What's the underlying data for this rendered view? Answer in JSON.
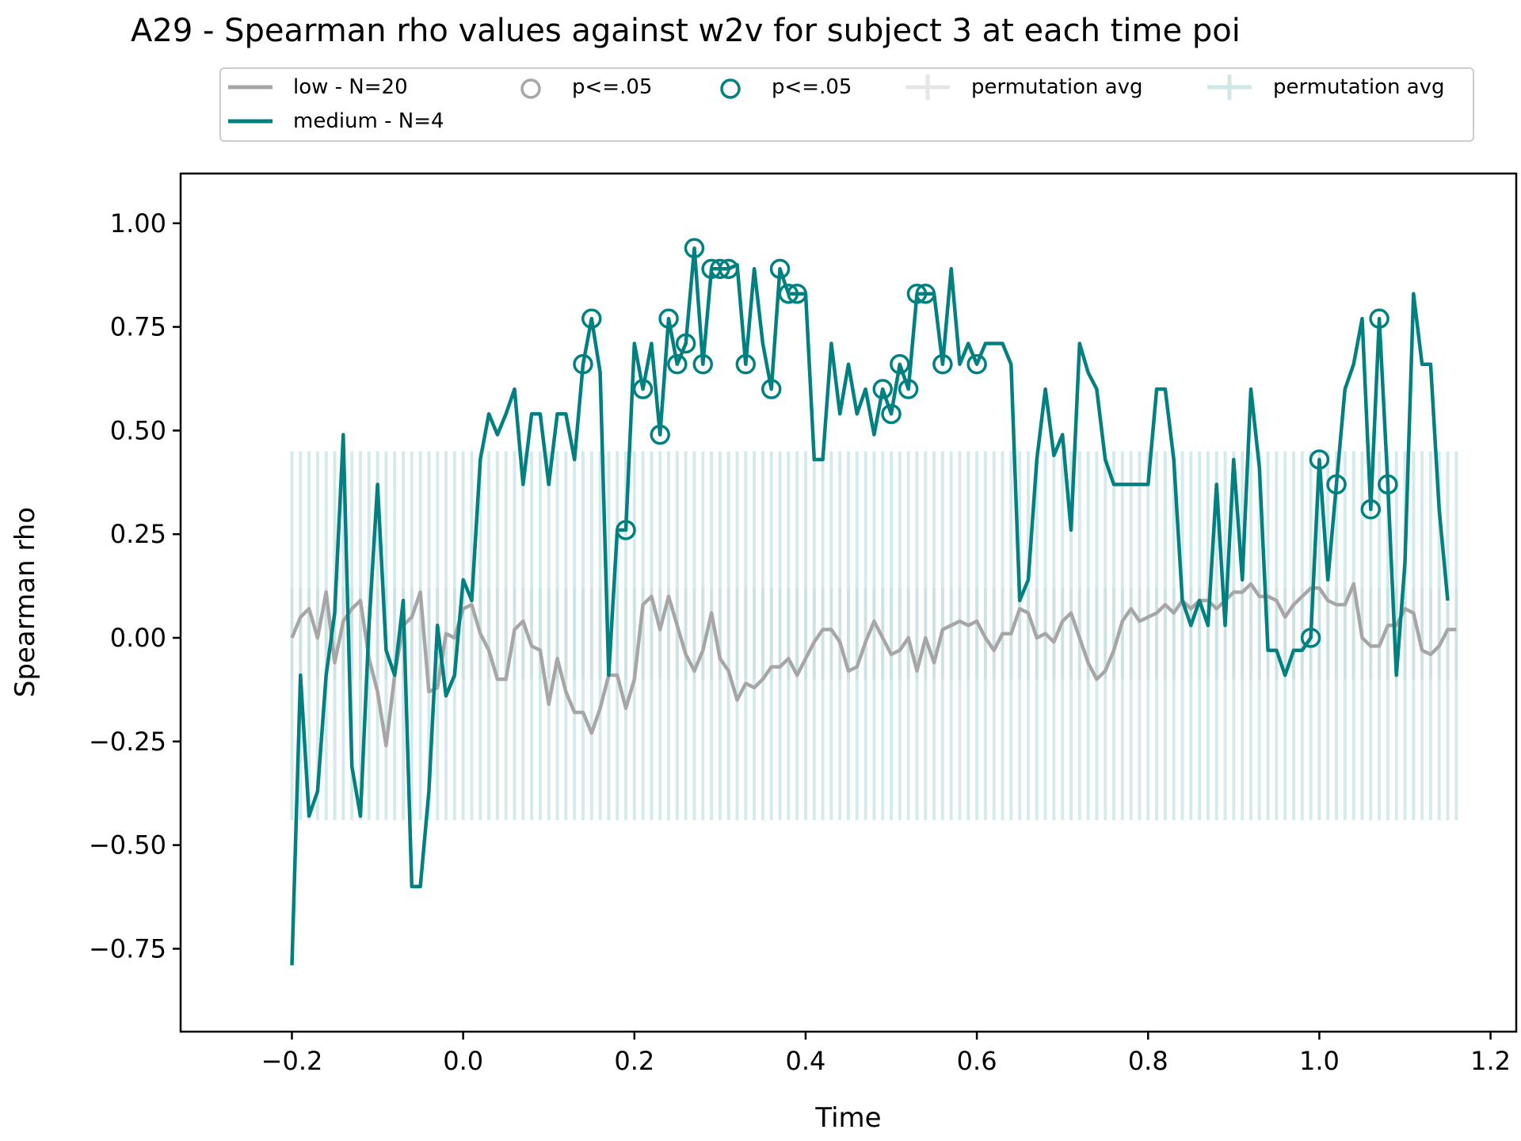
{
  "chart_data": {
    "type": "line",
    "title": "A29 - Spearman rho values against w2v for subject 3 at each time poi",
    "xlabel": "Time",
    "ylabel": "Spearman rho",
    "xlim": [
      -0.33,
      1.23
    ],
    "ylim": [
      -0.95,
      1.12
    ],
    "xticks": [
      -0.2,
      0.0,
      0.2,
      0.4,
      0.6,
      0.8,
      1.0,
      1.2
    ],
    "xtick_labels": [
      "−0.2",
      "0.0",
      "0.2",
      "0.4",
      "0.6",
      "0.8",
      "1.0",
      "1.2"
    ],
    "yticks": [
      -0.75,
      -0.5,
      -0.25,
      0.0,
      0.25,
      0.5,
      0.75,
      1.0
    ],
    "ytick_labels": [
      "−0.75",
      "−0.50",
      "−0.25",
      "0.00",
      "0.25",
      "0.50",
      "0.75",
      "1.00"
    ],
    "grid": false,
    "legend_placement": "top-center",
    "legend": [
      {
        "label": "low - N=20",
        "kind": "line",
        "color": "#a6a6a6"
      },
      {
        "label": "medium - N=4",
        "kind": "line",
        "color": "#008080"
      },
      {
        "label": "p<=.05",
        "kind": "marker",
        "color": "#a6a6a6"
      },
      {
        "label": "p<=.05",
        "kind": "marker",
        "color": "#008080"
      },
      {
        "label": "permutation avg",
        "kind": "errorbar",
        "color": "#d6d6d6"
      },
      {
        "label": "permutation avg",
        "kind": "errorbar",
        "color": "#b2dada"
      }
    ],
    "x_start": -0.2,
    "x_step": 0.01,
    "series": [
      {
        "name": "low - N=20",
        "color": "#a6a6a6",
        "values": [
          0.0,
          0.05,
          0.07,
          0.0,
          0.11,
          -0.06,
          0.04,
          0.07,
          0.09,
          -0.05,
          -0.13,
          -0.26,
          -0.09,
          0.03,
          0.05,
          0.11,
          -0.13,
          -0.12,
          0.01,
          0.0,
          0.07,
          0.08,
          0.01,
          -0.03,
          -0.1,
          -0.1,
          0.02,
          0.04,
          -0.02,
          -0.03,
          -0.16,
          -0.05,
          -0.13,
          -0.18,
          -0.18,
          -0.23,
          -0.17,
          -0.09,
          -0.09,
          -0.17,
          -0.1,
          0.08,
          0.1,
          0.02,
          0.1,
          0.03,
          -0.04,
          -0.08,
          -0.03,
          0.06,
          -0.05,
          -0.08,
          -0.15,
          -0.11,
          -0.12,
          -0.1,
          -0.07,
          -0.07,
          -0.05,
          -0.09,
          -0.05,
          -0.01,
          0.02,
          0.02,
          -0.01,
          -0.08,
          -0.07,
          -0.01,
          0.04,
          0.0,
          -0.04,
          -0.03,
          0.0,
          -0.08,
          0.0,
          -0.06,
          0.02,
          0.03,
          0.04,
          0.03,
          0.04,
          0.0,
          -0.03,
          0.01,
          0.01,
          0.07,
          0.06,
          0.0,
          0.01,
          -0.01,
          0.04,
          0.06,
          0.0,
          -0.06,
          -0.1,
          -0.08,
          -0.03,
          0.04,
          0.07,
          0.04,
          0.05,
          0.06,
          0.08,
          0.06,
          0.09,
          0.07,
          0.09,
          0.09,
          0.07,
          0.09,
          0.11,
          0.11,
          0.13,
          0.1,
          0.1,
          0.09,
          0.05,
          0.08,
          0.1,
          0.12,
          0.12,
          0.09,
          0.08,
          0.08,
          0.13,
          0.0,
          -0.02,
          -0.02,
          0.03,
          0.03,
          0.07,
          0.06,
          -0.03,
          -0.04,
          -0.02,
          0.02,
          0.02
        ]
      },
      {
        "name": "medium - N=4",
        "color": "#008080",
        "values": [
          -0.79,
          -0.09,
          -0.43,
          -0.37,
          -0.09,
          0.06,
          0.49,
          -0.31,
          -0.43,
          0.03,
          0.37,
          -0.03,
          -0.09,
          0.09,
          -0.6,
          -0.6,
          -0.37,
          0.03,
          -0.14,
          -0.09,
          0.14,
          0.09,
          0.43,
          0.54,
          0.49,
          0.54,
          0.6,
          0.37,
          0.54,
          0.54,
          0.37,
          0.54,
          0.54,
          0.43,
          0.66,
          0.77,
          0.64,
          -0.09,
          0.26,
          0.26,
          0.71,
          0.6,
          0.71,
          0.49,
          0.77,
          0.66,
          0.71,
          0.94,
          0.66,
          0.89,
          0.89,
          0.89,
          0.9,
          0.66,
          0.89,
          0.71,
          0.6,
          0.89,
          0.83,
          0.83,
          0.83,
          0.43,
          0.43,
          0.71,
          0.54,
          0.66,
          0.54,
          0.6,
          0.49,
          0.6,
          0.54,
          0.66,
          0.6,
          0.83,
          0.83,
          0.83,
          0.66,
          0.89,
          0.66,
          0.71,
          0.66,
          0.71,
          0.71,
          0.71,
          0.66,
          0.09,
          0.14,
          0.43,
          0.6,
          0.44,
          0.49,
          0.26,
          0.71,
          0.64,
          0.6,
          0.43,
          0.37,
          0.37,
          0.37,
          0.37,
          0.37,
          0.6,
          0.6,
          0.43,
          0.09,
          0.03,
          0.09,
          0.03,
          0.37,
          0.03,
          0.43,
          0.14,
          0.6,
          0.41,
          -0.03,
          -0.03,
          -0.09,
          -0.03,
          -0.03,
          0.0,
          0.43,
          0.14,
          0.37,
          0.6,
          0.66,
          0.77,
          0.31,
          0.77,
          0.37,
          -0.09,
          0.18,
          0.83,
          0.66,
          0.66,
          0.31,
          0.09
        ]
      }
    ],
    "significant_points": [
      {
        "series": "medium - N=4",
        "x": [
          0.14,
          0.15,
          0.19,
          0.21,
          0.23,
          0.24,
          0.25,
          0.26,
          0.27,
          0.28,
          0.29,
          0.3,
          0.31,
          0.33,
          0.36,
          0.37,
          0.38,
          0.39,
          0.49,
          0.5,
          0.51,
          0.52,
          0.53,
          0.54,
          0.56,
          0.6,
          0.99,
          1.0,
          1.02,
          1.06,
          1.07,
          1.08
        ]
      }
    ],
    "permutation_bands": [
      {
        "series": "low - N=20",
        "color": "#dadada",
        "lower": -0.1,
        "upper": 0.12
      },
      {
        "series": "medium - N=4",
        "color": "#b2dada",
        "lower": -0.44,
        "upper": 0.45
      }
    ]
  }
}
